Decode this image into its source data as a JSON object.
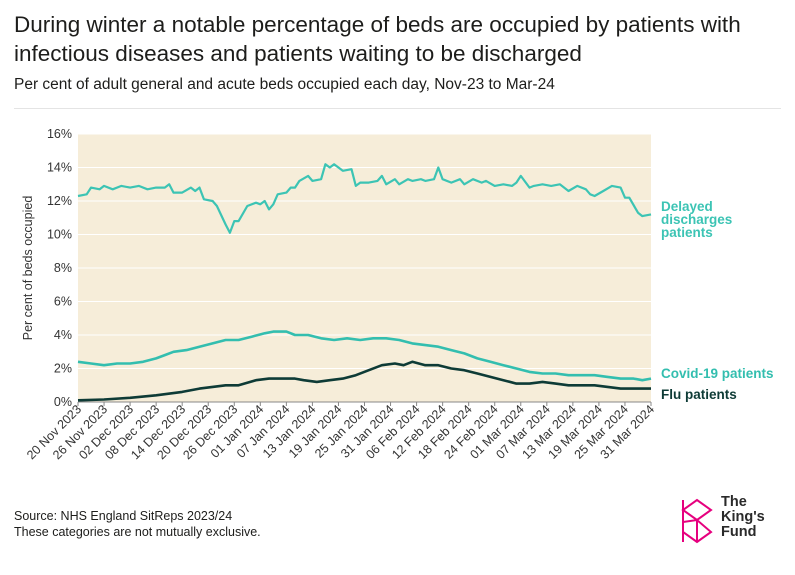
{
  "title": "During winter a notable percentage of beds are occupied by patients with infectious diseases and patients waiting to be discharged",
  "subtitle": "Per cent of adult general and acute beds occupied each day, Nov-23 to Mar-24",
  "source": "Source: NHS England SitReps 2023/24",
  "note": "These categories are not mutually exclusive.",
  "logo": {
    "line1": "The",
    "line2": "King's",
    "line3": "Fund"
  },
  "colors": {
    "plot_bg": "#f6edd9",
    "delayed": "#3cc4b4",
    "covid": "#33beaf",
    "flu": "#0e3b36",
    "logo": "#e6007e"
  },
  "chart_data": {
    "type": "line",
    "ylabel": "Per cent of beds occupied",
    "ylim": [
      0,
      16
    ],
    "yticks": [
      "0%",
      "2%",
      "4%",
      "6%",
      "8%",
      "10%",
      "12%",
      "14%",
      "16%"
    ],
    "x_start": "2023-11-20",
    "x_end": "2024-03-31",
    "xticks": [
      "20 Nov 2023",
      "26 Nov 2023",
      "02 Dec 2023",
      "08 Dec 2023",
      "14 Dec 2023",
      "20 Dec 2023",
      "26 Dec 2023",
      "01 Jan 2024",
      "07 Jan 2024",
      "13 Jan 2024",
      "19 Jan 2024",
      "25 Jan 2024",
      "31 Jan 2024",
      "06 Feb 2024",
      "12 Feb 2024",
      "18 Feb 2024",
      "24 Feb 2024",
      "01 Mar 2024",
      "07 Mar 2024",
      "13 Mar 2024",
      "19 Mar 2024",
      "25 Mar 2024",
      "31 Mar 2024"
    ],
    "grid": true,
    "legend": "line-end labels",
    "series": [
      {
        "name": "Delayed discharges patients",
        "label_lines": [
          "Delayed",
          "discharges",
          "patients"
        ],
        "points": [
          [
            "2023-11-20",
            12.3
          ],
          [
            "2023-11-22",
            12.4
          ],
          [
            "2023-11-23",
            12.8
          ],
          [
            "2023-11-25",
            12.7
          ],
          [
            "2023-11-26",
            12.9
          ],
          [
            "2023-11-28",
            12.7
          ],
          [
            "2023-11-30",
            12.9
          ],
          [
            "2023-12-02",
            12.8
          ],
          [
            "2023-12-04",
            12.9
          ],
          [
            "2023-12-06",
            12.7
          ],
          [
            "2023-12-08",
            12.8
          ],
          [
            "2023-12-10",
            12.8
          ],
          [
            "2023-12-11",
            13.0
          ],
          [
            "2023-12-12",
            12.5
          ],
          [
            "2023-12-14",
            12.5
          ],
          [
            "2023-12-16",
            12.8
          ],
          [
            "2023-12-17",
            12.6
          ],
          [
            "2023-12-18",
            12.8
          ],
          [
            "2023-12-19",
            12.1
          ],
          [
            "2023-12-21",
            12.0
          ],
          [
            "2023-12-22",
            11.7
          ],
          [
            "2023-12-24",
            10.6
          ],
          [
            "2023-12-25",
            10.1
          ],
          [
            "2023-12-26",
            10.8
          ],
          [
            "2023-12-27",
            10.8
          ],
          [
            "2023-12-29",
            11.7
          ],
          [
            "2023-12-31",
            11.9
          ],
          [
            "2024-01-01",
            11.8
          ],
          [
            "2024-01-02",
            12.0
          ],
          [
            "2024-01-03",
            11.5
          ],
          [
            "2024-01-04",
            11.8
          ],
          [
            "2024-01-05",
            12.4
          ],
          [
            "2024-01-07",
            12.5
          ],
          [
            "2024-01-08",
            12.8
          ],
          [
            "2024-01-09",
            12.8
          ],
          [
            "2024-01-10",
            13.2
          ],
          [
            "2024-01-12",
            13.5
          ],
          [
            "2024-01-13",
            13.2
          ],
          [
            "2024-01-15",
            13.3
          ],
          [
            "2024-01-16",
            14.2
          ],
          [
            "2024-01-17",
            14.0
          ],
          [
            "2024-01-18",
            14.2
          ],
          [
            "2024-01-20",
            13.8
          ],
          [
            "2024-01-22",
            13.9
          ],
          [
            "2024-01-23",
            12.9
          ],
          [
            "2024-01-24",
            13.1
          ],
          [
            "2024-01-26",
            13.1
          ],
          [
            "2024-01-28",
            13.2
          ],
          [
            "2024-01-29",
            13.5
          ],
          [
            "2024-01-30",
            13.0
          ],
          [
            "2024-02-01",
            13.3
          ],
          [
            "2024-02-02",
            13.0
          ],
          [
            "2024-02-04",
            13.3
          ],
          [
            "2024-02-05",
            13.2
          ],
          [
            "2024-02-07",
            13.3
          ],
          [
            "2024-02-08",
            13.2
          ],
          [
            "2024-02-10",
            13.3
          ],
          [
            "2024-02-11",
            14.0
          ],
          [
            "2024-02-12",
            13.3
          ],
          [
            "2024-02-14",
            13.1
          ],
          [
            "2024-02-16",
            13.3
          ],
          [
            "2024-02-17",
            13.0
          ],
          [
            "2024-02-19",
            13.3
          ],
          [
            "2024-02-21",
            13.1
          ],
          [
            "2024-02-22",
            13.2
          ],
          [
            "2024-02-24",
            12.9
          ],
          [
            "2024-02-26",
            13.0
          ],
          [
            "2024-02-28",
            12.9
          ],
          [
            "2024-02-29",
            13.1
          ],
          [
            "2024-03-01",
            13.5
          ],
          [
            "2024-03-03",
            12.8
          ],
          [
            "2024-03-04",
            12.9
          ],
          [
            "2024-03-06",
            13.0
          ],
          [
            "2024-03-08",
            12.9
          ],
          [
            "2024-03-10",
            13.0
          ],
          [
            "2024-03-12",
            12.6
          ],
          [
            "2024-03-14",
            12.9
          ],
          [
            "2024-03-16",
            12.7
          ],
          [
            "2024-03-17",
            12.4
          ],
          [
            "2024-03-18",
            12.3
          ],
          [
            "2024-03-20",
            12.6
          ],
          [
            "2024-03-22",
            12.9
          ],
          [
            "2024-03-24",
            12.8
          ],
          [
            "2024-03-25",
            12.2
          ],
          [
            "2024-03-26",
            12.2
          ],
          [
            "2024-03-28",
            11.3
          ],
          [
            "2024-03-29",
            11.1
          ],
          [
            "2024-03-31",
            11.2
          ]
        ]
      },
      {
        "name": "Covid-19 patients",
        "label_lines": [
          "Covid-19 patients"
        ],
        "points": [
          [
            "2023-11-20",
            2.4
          ],
          [
            "2023-11-23",
            2.3
          ],
          [
            "2023-11-26",
            2.2
          ],
          [
            "2023-11-29",
            2.3
          ],
          [
            "2023-12-02",
            2.3
          ],
          [
            "2023-12-05",
            2.4
          ],
          [
            "2023-12-08",
            2.6
          ],
          [
            "2023-12-10",
            2.8
          ],
          [
            "2023-12-12",
            3.0
          ],
          [
            "2023-12-15",
            3.1
          ],
          [
            "2023-12-18",
            3.3
          ],
          [
            "2023-12-21",
            3.5
          ],
          [
            "2023-12-24",
            3.7
          ],
          [
            "2023-12-27",
            3.7
          ],
          [
            "2023-12-30",
            3.9
          ],
          [
            "2024-01-02",
            4.1
          ],
          [
            "2024-01-04",
            4.2
          ],
          [
            "2024-01-07",
            4.2
          ],
          [
            "2024-01-09",
            4.0
          ],
          [
            "2024-01-12",
            4.0
          ],
          [
            "2024-01-15",
            3.8
          ],
          [
            "2024-01-18",
            3.7
          ],
          [
            "2024-01-21",
            3.8
          ],
          [
            "2024-01-24",
            3.7
          ],
          [
            "2024-01-27",
            3.8
          ],
          [
            "2024-01-30",
            3.8
          ],
          [
            "2024-02-02",
            3.7
          ],
          [
            "2024-02-05",
            3.5
          ],
          [
            "2024-02-08",
            3.4
          ],
          [
            "2024-02-11",
            3.3
          ],
          [
            "2024-02-14",
            3.1
          ],
          [
            "2024-02-17",
            2.9
          ],
          [
            "2024-02-20",
            2.6
          ],
          [
            "2024-02-23",
            2.4
          ],
          [
            "2024-02-26",
            2.2
          ],
          [
            "2024-02-29",
            2.0
          ],
          [
            "2024-03-03",
            1.8
          ],
          [
            "2024-03-06",
            1.7
          ],
          [
            "2024-03-09",
            1.7
          ],
          [
            "2024-03-12",
            1.6
          ],
          [
            "2024-03-15",
            1.6
          ],
          [
            "2024-03-18",
            1.6
          ],
          [
            "2024-03-21",
            1.5
          ],
          [
            "2024-03-24",
            1.4
          ],
          [
            "2024-03-27",
            1.4
          ],
          [
            "2024-03-29",
            1.3
          ],
          [
            "2024-03-31",
            1.4
          ]
        ]
      },
      {
        "name": "Flu patients",
        "label_lines": [
          "Flu patients"
        ],
        "points": [
          [
            "2023-11-20",
            0.1
          ],
          [
            "2023-11-26",
            0.15
          ],
          [
            "2023-12-02",
            0.25
          ],
          [
            "2023-12-08",
            0.4
          ],
          [
            "2023-12-14",
            0.6
          ],
          [
            "2023-12-18",
            0.8
          ],
          [
            "2023-12-21",
            0.9
          ],
          [
            "2023-12-24",
            1.0
          ],
          [
            "2023-12-27",
            1.0
          ],
          [
            "2023-12-31",
            1.3
          ],
          [
            "2024-01-03",
            1.4
          ],
          [
            "2024-01-06",
            1.4
          ],
          [
            "2024-01-09",
            1.4
          ],
          [
            "2024-01-11",
            1.3
          ],
          [
            "2024-01-14",
            1.2
          ],
          [
            "2024-01-17",
            1.3
          ],
          [
            "2024-01-20",
            1.4
          ],
          [
            "2024-01-23",
            1.6
          ],
          [
            "2024-01-26",
            1.9
          ],
          [
            "2024-01-29",
            2.2
          ],
          [
            "2024-02-01",
            2.3
          ],
          [
            "2024-02-03",
            2.2
          ],
          [
            "2024-02-05",
            2.4
          ],
          [
            "2024-02-08",
            2.2
          ],
          [
            "2024-02-11",
            2.2
          ],
          [
            "2024-02-14",
            2.0
          ],
          [
            "2024-02-17",
            1.9
          ],
          [
            "2024-02-20",
            1.7
          ],
          [
            "2024-02-23",
            1.5
          ],
          [
            "2024-02-26",
            1.3
          ],
          [
            "2024-02-29",
            1.1
          ],
          [
            "2024-03-03",
            1.1
          ],
          [
            "2024-03-06",
            1.2
          ],
          [
            "2024-03-09",
            1.1
          ],
          [
            "2024-03-12",
            1.0
          ],
          [
            "2024-03-15",
            1.0
          ],
          [
            "2024-03-18",
            1.0
          ],
          [
            "2024-03-21",
            0.9
          ],
          [
            "2024-03-24",
            0.8
          ],
          [
            "2024-03-27",
            0.8
          ],
          [
            "2024-03-31",
            0.8
          ]
        ]
      }
    ]
  }
}
